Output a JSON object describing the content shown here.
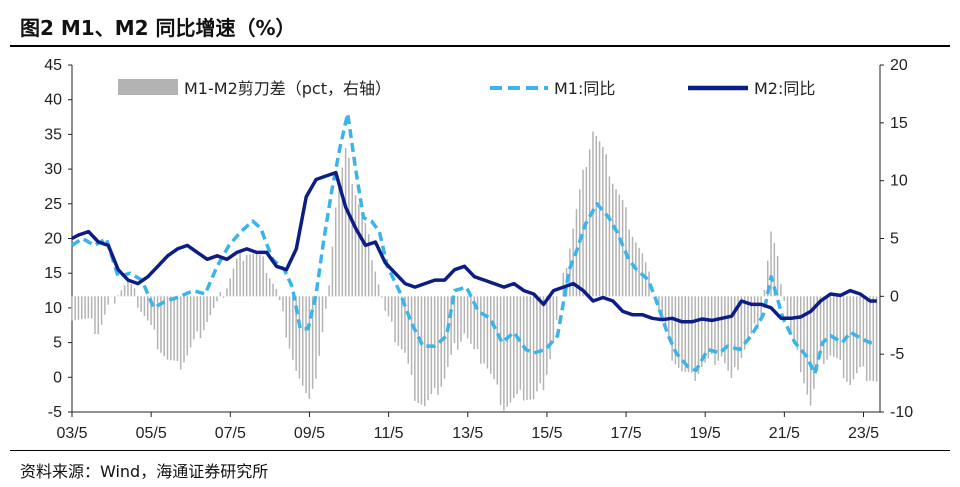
{
  "header": {
    "title": "图2  M1、M2 同比增速（%）"
  },
  "footer": {
    "source": "资料来源：Wind，海通证券研究所"
  },
  "chart_data": {
    "type": "line",
    "title": "图2  M1、M2 同比增速（%）",
    "x_ticks": [
      "03/5",
      "05/5",
      "07/5",
      "09/5",
      "11/5",
      "13/5",
      "15/5",
      "17/5",
      "19/5",
      "21/5",
      "23/5"
    ],
    "x_range": [
      2003.333,
      2023.75
    ],
    "y_left": {
      "range": [
        -5,
        45
      ],
      "ticks": [
        -5,
        0,
        5,
        10,
        15,
        20,
        25,
        30,
        35,
        40,
        45
      ]
    },
    "y_right": {
      "range": [
        -10,
        20
      ],
      "ticks": [
        -10,
        -5,
        0,
        5,
        10,
        15,
        20
      ]
    },
    "legend": {
      "placement": "top"
    },
    "series": [
      {
        "name": "M1-M2剪刀差（pct，右轴）",
        "axis": "right",
        "style": "bar",
        "color": "#b3b3b3",
        "points": [
          [
            2003.33,
            -1.5
          ],
          [
            2003.75,
            -2.3
          ],
          [
            2004.0,
            -3.0
          ],
          [
            2004.25,
            -1.0
          ],
          [
            2004.5,
            0.5
          ],
          [
            2004.75,
            1.2
          ],
          [
            2005.0,
            -0.5
          ],
          [
            2005.25,
            -2.2
          ],
          [
            2005.5,
            -4.0
          ],
          [
            2005.75,
            -5.5
          ],
          [
            2006.0,
            -6.2
          ],
          [
            2006.25,
            -5.0
          ],
          [
            2006.5,
            -3.5
          ],
          [
            2006.75,
            -2.0
          ],
          [
            2007.0,
            -0.8
          ],
          [
            2007.25,
            1.0
          ],
          [
            2007.5,
            3.0
          ],
          [
            2007.75,
            4.0
          ],
          [
            2008.0,
            3.5
          ],
          [
            2008.25,
            2.5
          ],
          [
            2008.5,
            0.5
          ],
          [
            2008.75,
            -3.0
          ],
          [
            2009.0,
            -6.5
          ],
          [
            2009.25,
            -9.0
          ],
          [
            2009.5,
            -7.0
          ],
          [
            2009.75,
            -1.5
          ],
          [
            2010.0,
            8.0
          ],
          [
            2010.25,
            12.5
          ],
          [
            2010.5,
            9.0
          ],
          [
            2010.75,
            6.0
          ],
          [
            2011.0,
            2.5
          ],
          [
            2011.25,
            -1.5
          ],
          [
            2011.5,
            -3.5
          ],
          [
            2011.75,
            -5.0
          ],
          [
            2012.0,
            -8.5
          ],
          [
            2012.25,
            -9.5
          ],
          [
            2012.5,
            -8.5
          ],
          [
            2012.75,
            -7.0
          ],
          [
            2013.0,
            -4.5
          ],
          [
            2013.25,
            -3.0
          ],
          [
            2013.5,
            -5.0
          ],
          [
            2013.75,
            -5.5
          ],
          [
            2014.0,
            -7.5
          ],
          [
            2014.25,
            -9.5
          ],
          [
            2014.5,
            -9.0
          ],
          [
            2014.75,
            -8.5
          ],
          [
            2015.0,
            -9.0
          ],
          [
            2015.25,
            -7.5
          ],
          [
            2015.5,
            -4.0
          ],
          [
            2015.75,
            1.5
          ],
          [
            2016.0,
            6.0
          ],
          [
            2016.25,
            10.5
          ],
          [
            2016.5,
            14.5
          ],
          [
            2016.75,
            12.5
          ],
          [
            2017.0,
            10.0
          ],
          [
            2017.25,
            8.0
          ],
          [
            2017.5,
            5.5
          ],
          [
            2017.75,
            3.5
          ],
          [
            2018.0,
            0.5
          ],
          [
            2018.25,
            -2.0
          ],
          [
            2018.5,
            -5.0
          ],
          [
            2018.75,
            -6.5
          ],
          [
            2019.0,
            -7.2
          ],
          [
            2019.25,
            -6.0
          ],
          [
            2019.5,
            -5.5
          ],
          [
            2019.75,
            -5.0
          ],
          [
            2020.0,
            -7.5
          ],
          [
            2020.25,
            -5.0
          ],
          [
            2020.5,
            -3.5
          ],
          [
            2020.75,
            -1.5
          ],
          [
            2021.0,
            5.5
          ],
          [
            2021.25,
            1.5
          ],
          [
            2021.5,
            -3.5
          ],
          [
            2021.75,
            -6.0
          ],
          [
            2022.0,
            -9.5
          ],
          [
            2022.25,
            -5.5
          ],
          [
            2022.5,
            -5.0
          ],
          [
            2022.75,
            -6.0
          ],
          [
            2023.0,
            -7.5
          ],
          [
            2023.25,
            -6.5
          ],
          [
            2023.5,
            -7.0
          ],
          [
            2023.67,
            -7.5
          ]
        ]
      },
      {
        "name": "M1:同比",
        "axis": "left",
        "style": "dashed",
        "color": "#3ab4ea",
        "points": [
          [
            2003.33,
            19.0
          ],
          [
            2003.6,
            20.0
          ],
          [
            2003.9,
            19.0
          ],
          [
            2004.2,
            20.0
          ],
          [
            2004.5,
            14.5
          ],
          [
            2004.8,
            15.0
          ],
          [
            2005.1,
            14.0
          ],
          [
            2005.4,
            10.0
          ],
          [
            2005.7,
            11.0
          ],
          [
            2006.0,
            11.5
          ],
          [
            2006.4,
            12.5
          ],
          [
            2006.7,
            12.0
          ],
          [
            2007.0,
            16.0
          ],
          [
            2007.3,
            19.0
          ],
          [
            2007.6,
            21.0
          ],
          [
            2007.9,
            22.5
          ],
          [
            2008.1,
            21.5
          ],
          [
            2008.4,
            17.0
          ],
          [
            2008.7,
            15.5
          ],
          [
            2008.9,
            13.0
          ],
          [
            2009.1,
            7.0
          ],
          [
            2009.3,
            7.0
          ],
          [
            2009.5,
            12.0
          ],
          [
            2009.7,
            20.0
          ],
          [
            2009.9,
            27.0
          ],
          [
            2010.1,
            33.0
          ],
          [
            2010.3,
            38.0
          ],
          [
            2010.5,
            30.0
          ],
          [
            2010.7,
            23.0
          ],
          [
            2010.9,
            22.5
          ],
          [
            2011.1,
            21.0
          ],
          [
            2011.3,
            16.0
          ],
          [
            2011.6,
            12.5
          ],
          [
            2011.9,
            8.0
          ],
          [
            2012.2,
            4.5
          ],
          [
            2012.5,
            4.5
          ],
          [
            2012.8,
            6.0
          ],
          [
            2013.0,
            12.5
          ],
          [
            2013.3,
            13.0
          ],
          [
            2013.6,
            9.5
          ],
          [
            2013.9,
            8.5
          ],
          [
            2014.2,
            5.0
          ],
          [
            2014.5,
            6.5
          ],
          [
            2014.8,
            4.0
          ],
          [
            2015.0,
            3.5
          ],
          [
            2015.3,
            4.0
          ],
          [
            2015.6,
            6.0
          ],
          [
            2015.9,
            15.5
          ],
          [
            2016.1,
            18.5
          ],
          [
            2016.3,
            22.0
          ],
          [
            2016.6,
            25.0
          ],
          [
            2016.9,
            23.0
          ],
          [
            2017.1,
            21.0
          ],
          [
            2017.4,
            17.0
          ],
          [
            2017.6,
            15.5
          ],
          [
            2017.9,
            14.0
          ],
          [
            2018.1,
            11.0
          ],
          [
            2018.4,
            6.0
          ],
          [
            2018.6,
            3.5
          ],
          [
            2018.9,
            1.5
          ],
          [
            2019.1,
            1.0
          ],
          [
            2019.4,
            4.0
          ],
          [
            2019.7,
            3.5
          ],
          [
            2019.9,
            4.5
          ],
          [
            2020.2,
            4.0
          ],
          [
            2020.5,
            6.0
          ],
          [
            2020.8,
            9.0
          ],
          [
            2021.0,
            14.5
          ],
          [
            2021.3,
            8.5
          ],
          [
            2021.6,
            5.0
          ],
          [
            2021.9,
            3.0
          ],
          [
            2022.1,
            0.5
          ],
          [
            2022.3,
            5.0
          ],
          [
            2022.5,
            6.0
          ],
          [
            2022.8,
            5.0
          ],
          [
            2023.0,
            6.5
          ],
          [
            2023.3,
            5.5
          ],
          [
            2023.5,
            5.0
          ],
          [
            2023.67,
            5.0
          ]
        ]
      },
      {
        "name": "M2:同比",
        "axis": "left",
        "style": "solid",
        "color": "#0c1d85",
        "points": [
          [
            2003.33,
            20.0
          ],
          [
            2003.5,
            20.5
          ],
          [
            2003.75,
            21.0
          ],
          [
            2004.0,
            19.5
          ],
          [
            2004.25,
            19.0
          ],
          [
            2004.5,
            15.5
          ],
          [
            2004.75,
            14.0
          ],
          [
            2005.0,
            13.5
          ],
          [
            2005.25,
            14.5
          ],
          [
            2005.5,
            16.0
          ],
          [
            2005.75,
            17.5
          ],
          [
            2006.0,
            18.5
          ],
          [
            2006.25,
            19.0
          ],
          [
            2006.5,
            18.0
          ],
          [
            2006.75,
            17.0
          ],
          [
            2007.0,
            17.5
          ],
          [
            2007.25,
            17.0
          ],
          [
            2007.5,
            18.0
          ],
          [
            2007.75,
            18.5
          ],
          [
            2008.0,
            18.0
          ],
          [
            2008.25,
            18.0
          ],
          [
            2008.5,
            16.0
          ],
          [
            2008.75,
            15.5
          ],
          [
            2009.0,
            18.5
          ],
          [
            2009.25,
            26.0
          ],
          [
            2009.5,
            28.5
          ],
          [
            2009.75,
            29.0
          ],
          [
            2010.0,
            29.5
          ],
          [
            2010.25,
            24.5
          ],
          [
            2010.5,
            21.5
          ],
          [
            2010.75,
            19.0
          ],
          [
            2011.0,
            19.5
          ],
          [
            2011.25,
            16.5
          ],
          [
            2011.5,
            15.0
          ],
          [
            2011.75,
            13.5
          ],
          [
            2012.0,
            13.0
          ],
          [
            2012.25,
            13.5
          ],
          [
            2012.5,
            14.0
          ],
          [
            2012.75,
            14.0
          ],
          [
            2013.0,
            15.5
          ],
          [
            2013.25,
            16.0
          ],
          [
            2013.5,
            14.5
          ],
          [
            2013.75,
            14.0
          ],
          [
            2014.0,
            13.5
          ],
          [
            2014.25,
            13.0
          ],
          [
            2014.5,
            13.5
          ],
          [
            2014.75,
            12.5
          ],
          [
            2015.0,
            12.0
          ],
          [
            2015.25,
            10.5
          ],
          [
            2015.5,
            12.5
          ],
          [
            2015.75,
            13.0
          ],
          [
            2016.0,
            13.5
          ],
          [
            2016.25,
            12.5
          ],
          [
            2016.5,
            11.0
          ],
          [
            2016.75,
            11.5
          ],
          [
            2017.0,
            11.0
          ],
          [
            2017.25,
            9.5
          ],
          [
            2017.5,
            9.0
          ],
          [
            2017.75,
            9.0
          ],
          [
            2018.0,
            8.5
          ],
          [
            2018.25,
            8.3
          ],
          [
            2018.5,
            8.5
          ],
          [
            2018.75,
            8.0
          ],
          [
            2019.0,
            8.0
          ],
          [
            2019.25,
            8.4
          ],
          [
            2019.5,
            8.2
          ],
          [
            2019.75,
            8.5
          ],
          [
            2020.0,
            8.8
          ],
          [
            2020.25,
            11.0
          ],
          [
            2020.5,
            10.5
          ],
          [
            2020.75,
            10.5
          ],
          [
            2021.0,
            10.0
          ],
          [
            2021.25,
            8.5
          ],
          [
            2021.5,
            8.5
          ],
          [
            2021.75,
            8.7
          ],
          [
            2022.0,
            9.5
          ],
          [
            2022.25,
            11.0
          ],
          [
            2022.5,
            12.0
          ],
          [
            2022.75,
            11.8
          ],
          [
            2023.0,
            12.5
          ],
          [
            2023.25,
            12.0
          ],
          [
            2023.5,
            11.0
          ],
          [
            2023.67,
            11.0
          ]
        ]
      }
    ]
  }
}
